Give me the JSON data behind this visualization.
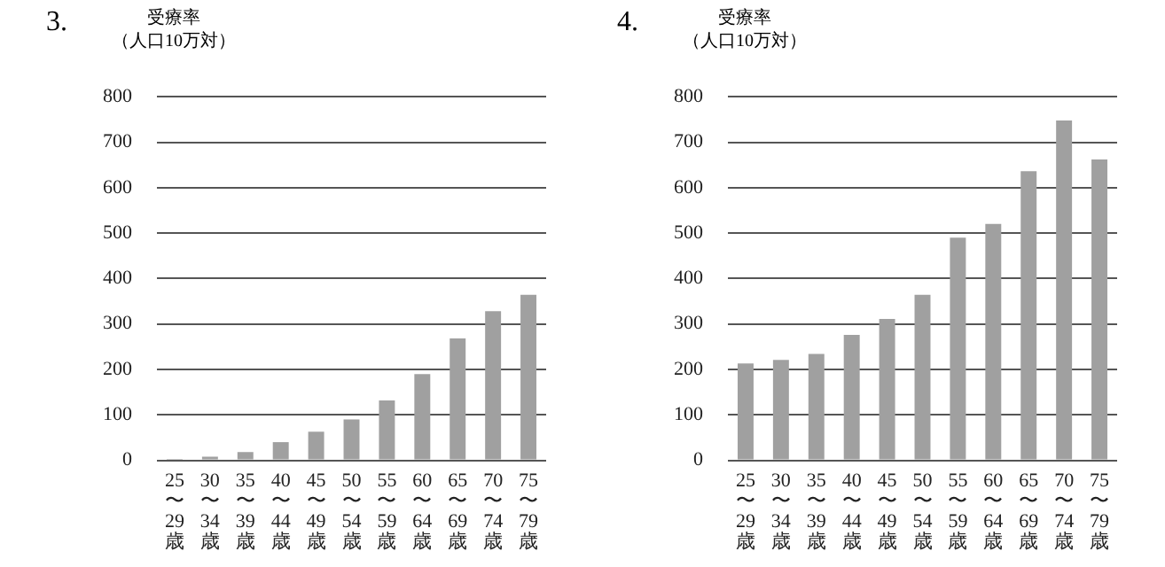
{
  "chart_data": [
    {
      "type": "bar",
      "title": "3.",
      "ylabel": "受療率（人口10万対）",
      "categories": [
        "25〜29歳",
        "30〜34歳",
        "35〜39歳",
        "40〜44歳",
        "45〜49歳",
        "50〜54歳",
        "55〜59歳",
        "60〜64歳",
        "65〜69歳",
        "70〜74歳",
        "75〜79歳"
      ],
      "values": [
        3,
        8,
        18,
        40,
        63,
        90,
        132,
        190,
        268,
        328,
        364
      ],
      "color": "#a0a0a0",
      "ylim": [
        0,
        800
      ],
      "yticks": [
        0,
        100,
        200,
        300,
        400,
        500,
        600,
        700,
        800
      ],
      "grid": "y",
      "legend": false
    },
    {
      "type": "bar",
      "title": "4.",
      "ylabel": "受療率（人口10万対）",
      "categories": [
        "25〜29歳",
        "30〜34歳",
        "35〜39歳",
        "40〜44歳",
        "45〜49歳",
        "50〜54歳",
        "55〜59歳",
        "60〜64歳",
        "65〜69歳",
        "70〜74歳",
        "75〜79歳"
      ],
      "values": [
        213,
        221,
        234,
        276,
        311,
        364,
        490,
        520,
        636,
        748,
        662
      ],
      "color": "#a0a0a0",
      "ylim": [
        0,
        800
      ],
      "yticks": [
        0,
        100,
        200,
        300,
        400,
        500,
        600,
        700,
        800
      ],
      "grid": "y",
      "legend": false
    }
  ]
}
